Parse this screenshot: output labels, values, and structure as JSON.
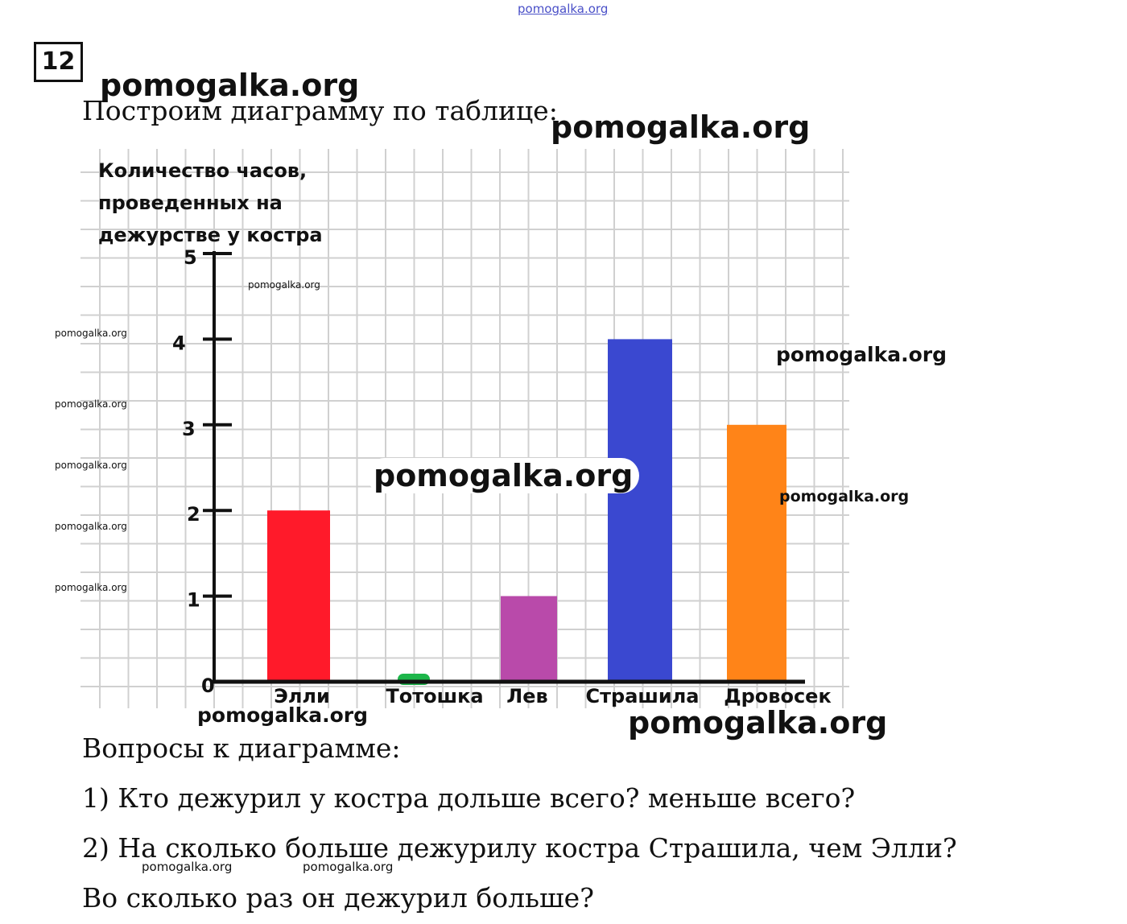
{
  "watermark_top": "pomogalka.org",
  "task_number": "12",
  "watermarks": {
    "w1": "pomogalka.org",
    "w2": "pomogalka.org",
    "w3": "pomogalka.org",
    "w4": "pomogalka.org",
    "w5": "pomogalka.org",
    "w6": "pomogalka.org",
    "w7": "pomogalka.org",
    "w8": "pomogalka.org",
    "w9": "pomogalka.org",
    "w10": "pomogalka.org",
    "w11": "pomogalka.org",
    "w12": "pomogalka.org",
    "w13": "pomogalka.org",
    "w14": "pomogalka.org",
    "w15": "pomogalka.org",
    "w16": "pomogalka.org"
  },
  "intro": "Построим диаграмму по таблице:",
  "questions": {
    "heading": "Вопросы к диаграмме:",
    "q1": "1) Кто дежурил у костра дольше всего? меньше всего?",
    "q2": "2) На сколько больше дежурилу костра Страшила, чем Элли?",
    "q3": "Во сколько раз он дежурил больше?"
  },
  "chart_data": {
    "type": "bar",
    "title_lines": [
      "Количество часов,",
      "проведенных на",
      "дежурстве у костра"
    ],
    "categories": [
      "Элли",
      "Тотошка",
      "Лев",
      "Страшила",
      "Дровосек"
    ],
    "values": [
      2,
      0,
      1,
      4,
      3
    ],
    "colors": [
      "#ff1a2a",
      "#1db64a",
      "#b94aaa",
      "#3a48d0",
      "#ff8418"
    ],
    "yticks": [
      0,
      1,
      2,
      3,
      4,
      5
    ],
    "ylim": [
      0,
      5
    ],
    "grid": true,
    "xlabel": "",
    "ylabel": ""
  }
}
